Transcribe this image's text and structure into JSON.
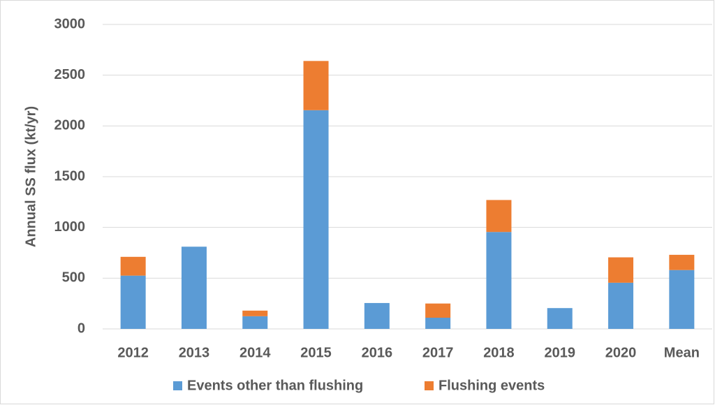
{
  "chart_data": {
    "type": "stacked_bar",
    "y_label": "Annual SS flux (kt/yr)",
    "categories": [
      "2012",
      "2013",
      "2014",
      "2015",
      "2016",
      "2017",
      "2018",
      "2019",
      "2020",
      "Mean"
    ],
    "series": [
      {
        "name": "Events other than flushing",
        "color": "#5b9bd5",
        "values": [
          525,
          810,
          125,
          2155,
          255,
          110,
          955,
          205,
          455,
          580
        ]
      },
      {
        "name": "Flushing events",
        "color": "#ed7d31",
        "values": [
          185,
          0,
          55,
          485,
          0,
          140,
          315,
          0,
          250,
          150
        ]
      }
    ],
    "ylim": [
      0,
      3000
    ],
    "yticks": [
      0,
      500,
      1000,
      1500,
      2000,
      2500,
      3000
    ],
    "grid": true,
    "legend": "bottom"
  }
}
